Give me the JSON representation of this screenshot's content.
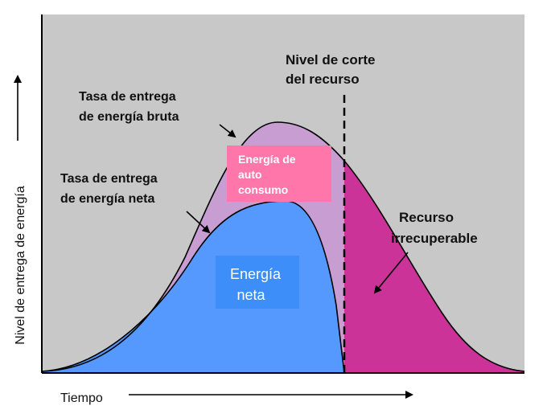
{
  "axis": {
    "y_label": "Nivel de entrega de energía",
    "x_label": "Tiempo"
  },
  "labels": {
    "gross_rate": [
      "Tasa de entrega",
      "de energía bruta"
    ],
    "net_rate": [
      "Tasa de entrega",
      "de energía neta"
    ],
    "cutoff": [
      "Nivel de corte",
      "del recurso"
    ],
    "self_consumption": [
      "Energía de",
      "auto",
      "consumo"
    ],
    "net_energy": [
      "Energía",
      "neta"
    ],
    "unrecoverable": [
      "Recurso",
      "irrecuperable"
    ]
  },
  "colors": {
    "background": "#c8c8c8",
    "self_consumption_fill": "#c89ed2",
    "net_energy_fill": "#5599ff",
    "unrecoverable_fill": "#cc3399",
    "self_consumption_label_box": "#ff77aa",
    "net_energy_label_box": "#3d8ef8"
  }
}
